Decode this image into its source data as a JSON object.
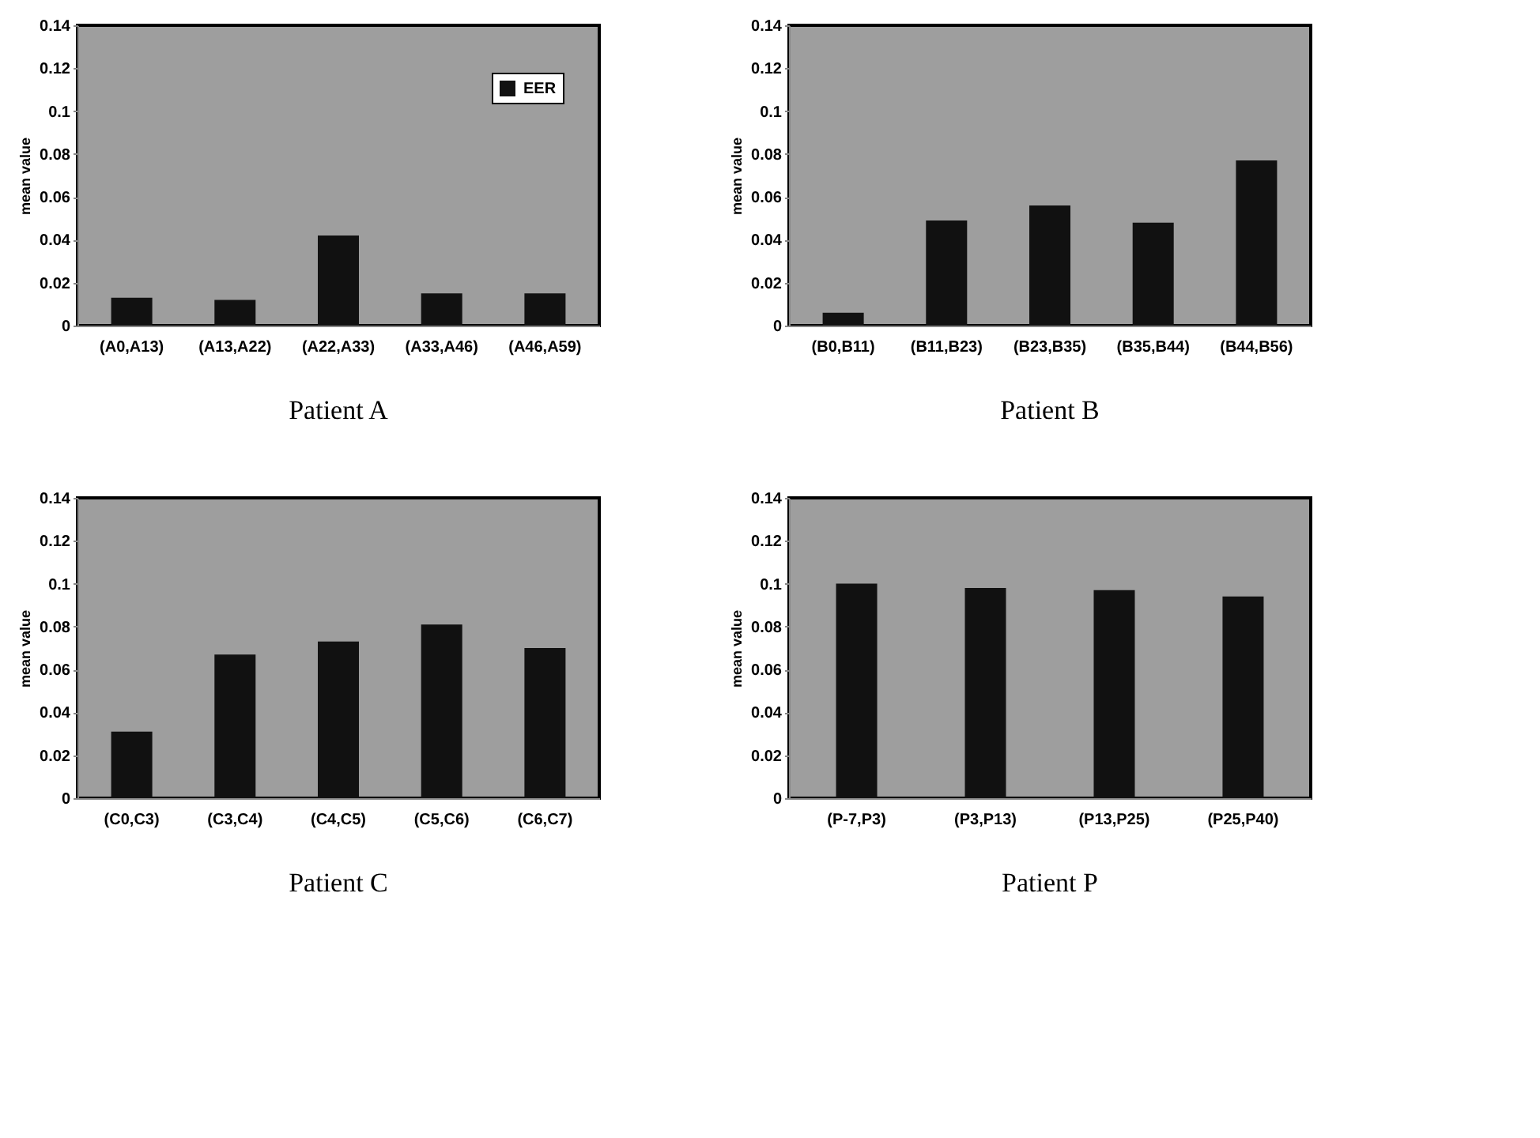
{
  "chart_data": [
    {
      "type": "bar",
      "title": "Patient A",
      "ylabel": "mean value",
      "categories": [
        "(A0,A13)",
        "(A13,A22)",
        "(A22,A33)",
        "(A33,A46)",
        "(A46,A59)"
      ],
      "series": [
        {
          "name": "EER",
          "color": "#111111",
          "values": [
            0.013,
            0.012,
            0.042,
            0.015,
            0.015
          ]
        }
      ],
      "ylim": [
        0,
        0.14
      ],
      "yticks": [
        0,
        0.02,
        0.04,
        0.06,
        0.08,
        0.1,
        0.12,
        0.14
      ],
      "grid": false,
      "legend": "top right"
    },
    {
      "type": "bar",
      "title": "Patient B",
      "ylabel": "mean value",
      "categories": [
        "(B0,B11)",
        "(B11,B23)",
        "(B23,B35)",
        "(B35,B44)",
        "(B44,B56)"
      ],
      "series": [
        {
          "color": "#111111",
          "values": [
            0.006,
            0.049,
            0.056,
            0.048,
            0.077
          ]
        }
      ],
      "ylim": [
        0,
        0.14
      ],
      "yticks": [
        0,
        0.02,
        0.04,
        0.06,
        0.08,
        0.1,
        0.12,
        0.14
      ],
      "grid": false
    },
    {
      "type": "bar",
      "title": "Patient C",
      "ylabel": "mean value",
      "categories": [
        "(C0,C3)",
        "(C3,C4)",
        "(C4,C5)",
        "(C5,C6)",
        "(C6,C7)"
      ],
      "series": [
        {
          "color": "#111111",
          "values": [
            0.031,
            0.067,
            0.073,
            0.081,
            0.07
          ]
        }
      ],
      "ylim": [
        0,
        0.14
      ],
      "yticks": [
        0,
        0.02,
        0.04,
        0.06,
        0.08,
        0.1,
        0.12,
        0.14
      ],
      "grid": false
    },
    {
      "type": "bar",
      "title": "Patient P",
      "ylabel": "mean value",
      "categories": [
        "(P-7,P3)",
        "(P3,P13)",
        "(P13,P25)",
        "(P25,P40)"
      ],
      "series": [
        {
          "color": "#111111",
          "values": [
            0.1,
            0.098,
            0.097,
            0.094
          ]
        }
      ],
      "ylim": [
        0,
        0.14
      ],
      "yticks": [
        0,
        0.02,
        0.04,
        0.06,
        0.08,
        0.1,
        0.12,
        0.14
      ],
      "grid": false
    }
  ]
}
